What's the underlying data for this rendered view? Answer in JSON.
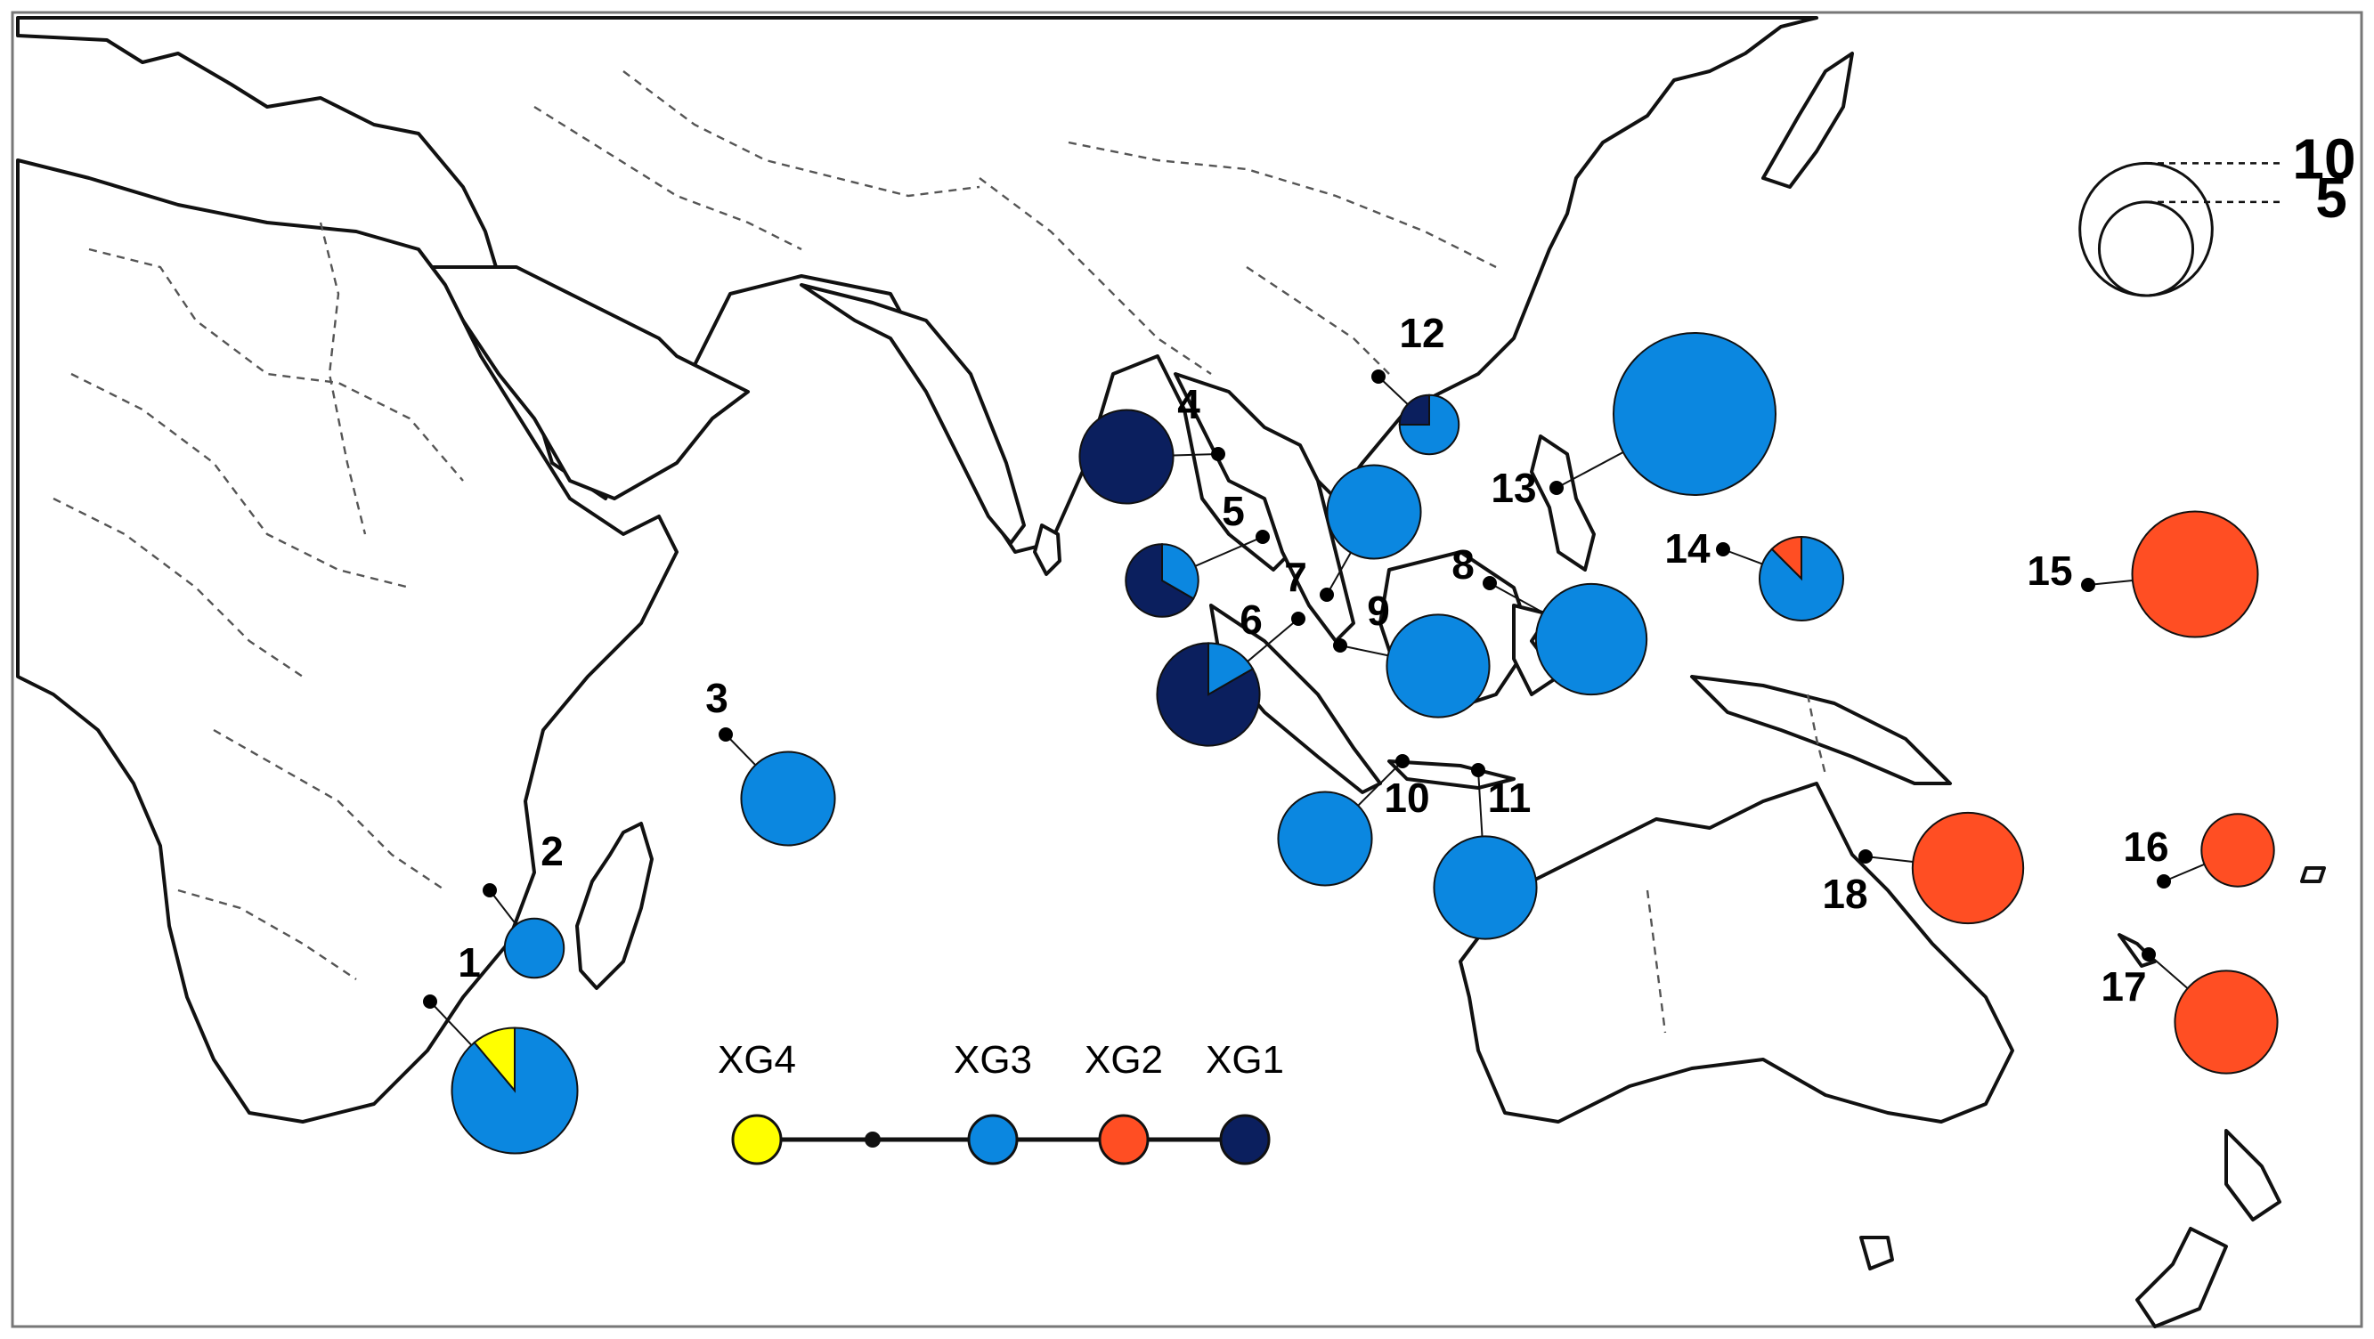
{
  "colors": {
    "XG1": "#0b1f5e",
    "XG2": "#ff4e23",
    "XG3": "#0b87e0",
    "XG4": "#ffff00"
  },
  "sites": [
    {
      "id": "1",
      "label": "1",
      "n": 9,
      "slices": [
        {
          "group": "XG3",
          "count": 8
        },
        {
          "group": "XG4",
          "count": 1
        }
      ]
    },
    {
      "id": "2",
      "label": "2",
      "n": 2,
      "slices": [
        {
          "group": "XG3",
          "count": 2
        }
      ]
    },
    {
      "id": "3",
      "label": "3",
      "n": 5,
      "slices": [
        {
          "group": "XG3",
          "count": 5
        }
      ]
    },
    {
      "id": "4",
      "label": "4",
      "n": 5,
      "slices": [
        {
          "group": "XG1",
          "count": 5
        }
      ]
    },
    {
      "id": "5",
      "label": "5",
      "n": 3,
      "slices": [
        {
          "group": "XG3",
          "count": 1
        },
        {
          "group": "XG1",
          "count": 2
        }
      ]
    },
    {
      "id": "6",
      "label": "6",
      "n": 6,
      "slices": [
        {
          "group": "XG3",
          "count": 1
        },
        {
          "group": "XG1",
          "count": 5
        }
      ]
    },
    {
      "id": "7",
      "label": "7",
      "n": 5,
      "slices": [
        {
          "group": "XG3",
          "count": 5
        }
      ]
    },
    {
      "id": "8",
      "label": "8",
      "n": 7,
      "slices": [
        {
          "group": "XG3",
          "count": 7
        }
      ]
    },
    {
      "id": "9",
      "label": "9",
      "n": 6,
      "slices": [
        {
          "group": "XG3",
          "count": 6
        }
      ]
    },
    {
      "id": "10",
      "label": "10",
      "n": 5,
      "slices": [
        {
          "group": "XG3",
          "count": 5
        }
      ]
    },
    {
      "id": "11",
      "label": "11",
      "n": 6,
      "slices": [
        {
          "group": "XG3",
          "count": 6
        }
      ]
    },
    {
      "id": "12",
      "label": "12",
      "n": 2,
      "slices": [
        {
          "group": "XG3",
          "count": 1.5
        },
        {
          "group": "XG1",
          "count": 0.5
        }
      ]
    },
    {
      "id": "13",
      "label": "13",
      "n": 15,
      "slices": [
        {
          "group": "XG3",
          "count": 15
        }
      ]
    },
    {
      "id": "14",
      "label": "14",
      "n": 4,
      "slices": [
        {
          "group": "XG3",
          "count": 3.5
        },
        {
          "group": "XG2",
          "count": 0.5
        }
      ]
    },
    {
      "id": "15",
      "label": "15",
      "n": 9,
      "slices": [
        {
          "group": "XG2",
          "count": 9
        }
      ]
    },
    {
      "id": "16",
      "label": "16",
      "n": 3,
      "slices": [
        {
          "group": "XG2",
          "count": 3
        }
      ]
    },
    {
      "id": "17",
      "label": "17",
      "n": 6,
      "slices": [
        {
          "group": "XG2",
          "count": 6
        }
      ]
    },
    {
      "id": "18",
      "label": "18",
      "n": 7,
      "slices": [
        {
          "group": "XG2",
          "count": 7
        }
      ]
    }
  ],
  "network": {
    "nodes": [
      {
        "id": "XG4",
        "label": "XG4",
        "group": "XG4"
      },
      {
        "id": "median",
        "label": "",
        "group": null
      },
      {
        "id": "XG3",
        "label": "XG3",
        "group": "XG3"
      },
      {
        "id": "XG2",
        "label": "XG2",
        "group": "XG2"
      },
      {
        "id": "XG1",
        "label": "XG1",
        "group": "XG1"
      }
    ]
  },
  "scale": {
    "large_label": "10",
    "small_label": "5",
    "large_value": 10,
    "small_value": 5
  }
}
